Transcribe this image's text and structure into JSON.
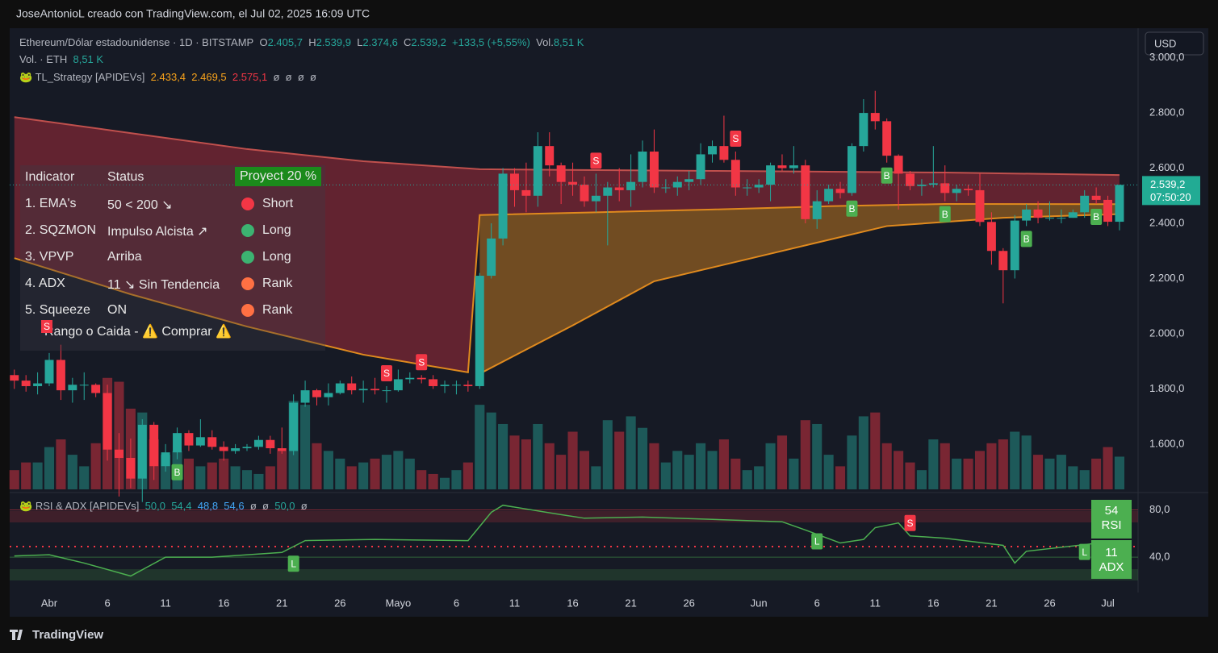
{
  "header": "JoseAntonioL creado con TradingView.com, el Jul 02, 2025 16:09 UTC",
  "footer": "TradingView",
  "currency": "USD",
  "legend": {
    "symbol": "Ethereum/Dólar estadounidense · 1D · BITSTAMP",
    "o_key": "O",
    "o": "2.405,7",
    "h_key": "H",
    "h": "2.539,9",
    "l_key": "L",
    "l": "2.374,6",
    "c_key": "C",
    "c": "2.539,2",
    "change": "+133,5 (+5,55%)",
    "vol_key": "Vol.",
    "vol": "8,51 K",
    "vol_line": "Vol. · ETH",
    "vol_line_value": "8,51 K",
    "strategy": "TL_Strategy [APIDEVs]",
    "strategy_values": [
      "2.433,4",
      "2.469,5",
      "2.575,1",
      "ø",
      "ø",
      "ø",
      "ø"
    ]
  },
  "table": {
    "header": [
      "Indicator",
      "Status",
      "Proyect 20 %"
    ],
    "rows": [
      [
        "1. EMA's",
        "50 < 200 ↘",
        "Short"
      ],
      [
        "2. SQZMON",
        "Impulso Alcista ↗",
        "Long"
      ],
      [
        "3. VPVP",
        "Arriba",
        "Long"
      ],
      [
        "4. ADX",
        "11 ↘ Sin Tendencia",
        "Rank"
      ],
      [
        "5. Squeeze",
        "ON",
        "Rank"
      ]
    ],
    "dot_colors": [
      "#f23645",
      "#3cb371",
      "#3cb371",
      "#ff7043",
      "#ff7043"
    ],
    "badge": "S",
    "footer_left": "Rango o Caida -",
    "footer_right": "Comprar"
  },
  "chart_data": {
    "type": "candlestick",
    "up_color": "#26a69a",
    "down_color": "#f23645",
    "open": [
      1850,
      1830,
      1810,
      1820,
      1905,
      1795,
      1815,
      1815,
      1785,
      1580,
      1550,
      1475,
      1670,
      1520,
      1570,
      1640,
      1595,
      1625,
      1590,
      1575,
      1585,
      1590,
      1615,
      1585,
      1575,
      1750,
      1795,
      1770,
      1785,
      1820,
      1795,
      1800,
      1795,
      1795,
      1835,
      1840,
      1835,
      1810,
      1815,
      1815,
      1810,
      2210,
      2345,
      2580,
      2520,
      2500,
      2680,
      2610,
      2550,
      2540,
      2480,
      2500,
      2530,
      2520,
      2550,
      2660,
      2530,
      2530,
      2550,
      2560,
      2650,
      2680,
      2630,
      2530,
      2530,
      2540,
      2610,
      2600,
      2610,
      2415,
      2480,
      2525,
      2510,
      2680,
      2800,
      2770,
      2645,
      2580,
      2535,
      2540,
      2545,
      2510,
      2525,
      2520,
      2405,
      2300,
      2230,
      2410,
      2450,
      2420,
      2420,
      2420,
      2440,
      2500,
      2485,
      2405.7
    ],
    "high": [
      1870,
      1850,
      1860,
      1930,
      1960,
      1840,
      1860,
      1820,
      1815,
      1640,
      1620,
      1690,
      1680,
      1600,
      1660,
      1650,
      1690,
      1650,
      1610,
      1600,
      1600,
      1630,
      1630,
      1660,
      1780,
      1830,
      1800,
      1820,
      1830,
      1845,
      1830,
      1840,
      1810,
      1870,
      1860,
      1850,
      1850,
      1830,
      1830,
      1830,
      2220,
      2400,
      2600,
      2600,
      2620,
      2730,
      2730,
      2620,
      2620,
      2570,
      2580,
      2550,
      2600,
      2650,
      2700,
      2740,
      2560,
      2570,
      2590,
      2690,
      2700,
      2790,
      2660,
      2560,
      2560,
      2620,
      2650,
      2680,
      2630,
      2520,
      2540,
      2550,
      2690,
      2850,
      2880,
      2780,
      2650,
      2590,
      2560,
      2680,
      2610,
      2540,
      2540,
      2580,
      2440,
      2310,
      2430,
      2470,
      2480,
      2480,
      2450,
      2450,
      2520,
      2530,
      2500,
      2539.9
    ],
    "low": [
      1800,
      1790,
      1780,
      1810,
      1760,
      1750,
      1760,
      1770,
      1540,
      1410,
      1440,
      1390,
      1470,
      1500,
      1545,
      1575,
      1590,
      1580,
      1540,
      1565,
      1575,
      1580,
      1565,
      1565,
      1560,
      1735,
      1740,
      1740,
      1780,
      1780,
      1750,
      1780,
      1750,
      1790,
      1820,
      1820,
      1800,
      1785,
      1780,
      1790,
      1800,
      2200,
      2320,
      2460,
      2440,
      2460,
      2570,
      2470,
      2500,
      2460,
      2440,
      2320,
      2480,
      2460,
      2530,
      2510,
      2510,
      2500,
      2520,
      2540,
      2620,
      2620,
      2500,
      2500,
      2510,
      2480,
      2590,
      2580,
      2400,
      2380,
      2470,
      2490,
      2500,
      2660,
      2740,
      2620,
      2450,
      2520,
      2500,
      2530,
      2480,
      2480,
      2500,
      2390,
      2250,
      2110,
      2200,
      2390,
      2400,
      2410,
      2400,
      2420,
      2420,
      2470,
      2390,
      2374.6
    ],
    "close": [
      1830,
      1810,
      1820,
      1905,
      1795,
      1815,
      1815,
      1785,
      1580,
      1550,
      1475,
      1670,
      1520,
      1570,
      1640,
      1595,
      1625,
      1590,
      1575,
      1585,
      1590,
      1615,
      1585,
      1575,
      1750,
      1795,
      1770,
      1785,
      1820,
      1795,
      1800,
      1795,
      1795,
      1835,
      1840,
      1835,
      1810,
      1815,
      1815,
      1810,
      2210,
      2345,
      2580,
      2520,
      2500,
      2680,
      2610,
      2550,
      2540,
      2480,
      2500,
      2530,
      2520,
      2550,
      2660,
      2530,
      2530,
      2550,
      2560,
      2650,
      2680,
      2630,
      2530,
      2530,
      2540,
      2610,
      2600,
      2610,
      2415,
      2480,
      2525,
      2510,
      2680,
      2800,
      2770,
      2645,
      2580,
      2535,
      2540,
      2545,
      2510,
      2525,
      2520,
      2405,
      2300,
      2230,
      2410,
      2450,
      2420,
      2420,
      2420,
      2440,
      2500,
      2485,
      2405.7,
      2539.2
    ],
    "volume": [
      5,
      7,
      7,
      11,
      13,
      9,
      6,
      12,
      29,
      28,
      21,
      20,
      13,
      9,
      10,
      8,
      6,
      7,
      8,
      6,
      5,
      4,
      6,
      10,
      23,
      22,
      12,
      10,
      8,
      6,
      7,
      8,
      9,
      10,
      8,
      5,
      4,
      3,
      5,
      7,
      22,
      20,
      17,
      14,
      13,
      17,
      12,
      9,
      15,
      10,
      6,
      18,
      15,
      19,
      16,
      12,
      7,
      10,
      9,
      12,
      10,
      13,
      8,
      5,
      6,
      12,
      14,
      8,
      18,
      17,
      9,
      6,
      14,
      19,
      20,
      12,
      10,
      7,
      5,
      13,
      12,
      8,
      8,
      10,
      12,
      13,
      15,
      14,
      9,
      8,
      9,
      6,
      5,
      8,
      11,
      8.51
    ],
    "volume_lim": [
      0,
      120
    ],
    "ylim": [
      1436,
      3107
    ],
    "yticks": [
      {
        "value": 3000,
        "label": "3.000,0"
      },
      {
        "value": 2800,
        "label": "2.800,0"
      },
      {
        "value": 2600,
        "label": "2.600,0"
      },
      {
        "value": 2400,
        "label": "2.400,0"
      },
      {
        "value": 2200,
        "label": "2.200,0"
      },
      {
        "value": 2000,
        "label": "2.000,0"
      },
      {
        "value": 1800,
        "label": "1.800,0"
      },
      {
        "value": 1600,
        "label": "1.600,0"
      }
    ],
    "last_price": {
      "value": 2539.2,
      "label": "2.539,2",
      "countdown": "07:50:20"
    },
    "xticks": [
      {
        "value": 3,
        "label": "Abr"
      },
      {
        "value": 8,
        "label": "6"
      },
      {
        "value": 13,
        "label": "11"
      },
      {
        "value": 18,
        "label": "16"
      },
      {
        "value": 23,
        "label": "21"
      },
      {
        "value": 28,
        "label": "26"
      },
      {
        "value": 33,
        "label": "Mayo"
      },
      {
        "value": 38,
        "label": "6"
      },
      {
        "value": 43,
        "label": "11"
      },
      {
        "value": 48,
        "label": "16"
      },
      {
        "value": 53,
        "label": "21"
      },
      {
        "value": 58,
        "label": "26"
      },
      {
        "value": 64,
        "label": "Jun"
      },
      {
        "value": 69,
        "label": "6"
      },
      {
        "value": 74,
        "label": "11"
      },
      {
        "value": 79,
        "label": "16"
      },
      {
        "value": 84,
        "label": "21"
      },
      {
        "value": 89,
        "label": "26"
      },
      {
        "value": 94,
        "label": "Jul"
      }
    ],
    "xlim": [
      -0.4,
      96.6
    ],
    "lines": [
      {
        "color": "#c0504d",
        "x": [
          0,
          10,
          20,
          30,
          40,
          50,
          60,
          70,
          80,
          95
        ],
        "values": [
          2785,
          2727,
          2669,
          2625,
          2596,
          2593,
          2590,
          2587,
          2584,
          2575.1
        ]
      },
      {
        "color": "#e08a1e",
        "x": [
          0,
          10,
          20,
          30,
          39,
          40,
          50,
          60,
          70,
          80,
          95
        ],
        "values": [
          2274,
          2143,
          2026,
          1924,
          1860,
          2430,
          2440,
          2450,
          2462,
          2470,
          2469.5
        ]
      },
      {
        "color": "#e08a1e",
        "x": [
          40,
          48,
          55,
          65,
          75,
          85,
          95
        ],
        "values": [
          1855,
          2030,
          2190,
          2290,
          2390,
          2420,
          2433.4
        ]
      }
    ],
    "signals": [
      {
        "x": 14,
        "label": "B"
      },
      {
        "x": 32,
        "label": "S"
      },
      {
        "x": 35,
        "label": "S"
      },
      {
        "x": 50,
        "label": "S"
      },
      {
        "x": 62,
        "label": "S"
      },
      {
        "x": 72,
        "label": "B"
      },
      {
        "x": 75,
        "label": "B"
      },
      {
        "x": 80,
        "label": "B"
      },
      {
        "x": 87,
        "label": "B"
      },
      {
        "x": 93,
        "label": "B"
      }
    ],
    "rsi": {
      "title": "RSI & ADX [APIDEVs]",
      "legend_values": [
        "50,0",
        "54,4",
        "48,8",
        "54,6",
        "ø",
        "ø",
        "50,0",
        "ø"
      ],
      "color": "#4caf50",
      "x": [
        0,
        3,
        6,
        10,
        13,
        17,
        23,
        25,
        31,
        39,
        41,
        42,
        47,
        49,
        54,
        60,
        66,
        68,
        71,
        73,
        74,
        76,
        77,
        80,
        85,
        86,
        87,
        95
      ],
      "values": [
        41,
        42,
        35,
        24,
        40,
        40,
        44,
        54,
        55,
        54,
        78,
        84,
        76,
        73,
        74,
        72,
        70,
        63,
        52,
        55,
        65,
        69,
        58,
        56,
        50,
        35,
        45,
        54
      ],
      "ylim": [
        10,
        92
      ],
      "yticks": [
        {
          "value": 80,
          "label": "80,0"
        },
        {
          "value": 40,
          "label": "40,0"
        }
      ],
      "rsi_value": "54",
      "rsi_label": "RSI",
      "adx_value": "11",
      "adx_label": "ADX",
      "signals": [
        {
          "x": 24,
          "label": "L"
        },
        {
          "x": 69,
          "label": "L"
        },
        {
          "x": 92,
          "label": "L"
        },
        {
          "x": 77,
          "label": "S"
        }
      ]
    }
  }
}
